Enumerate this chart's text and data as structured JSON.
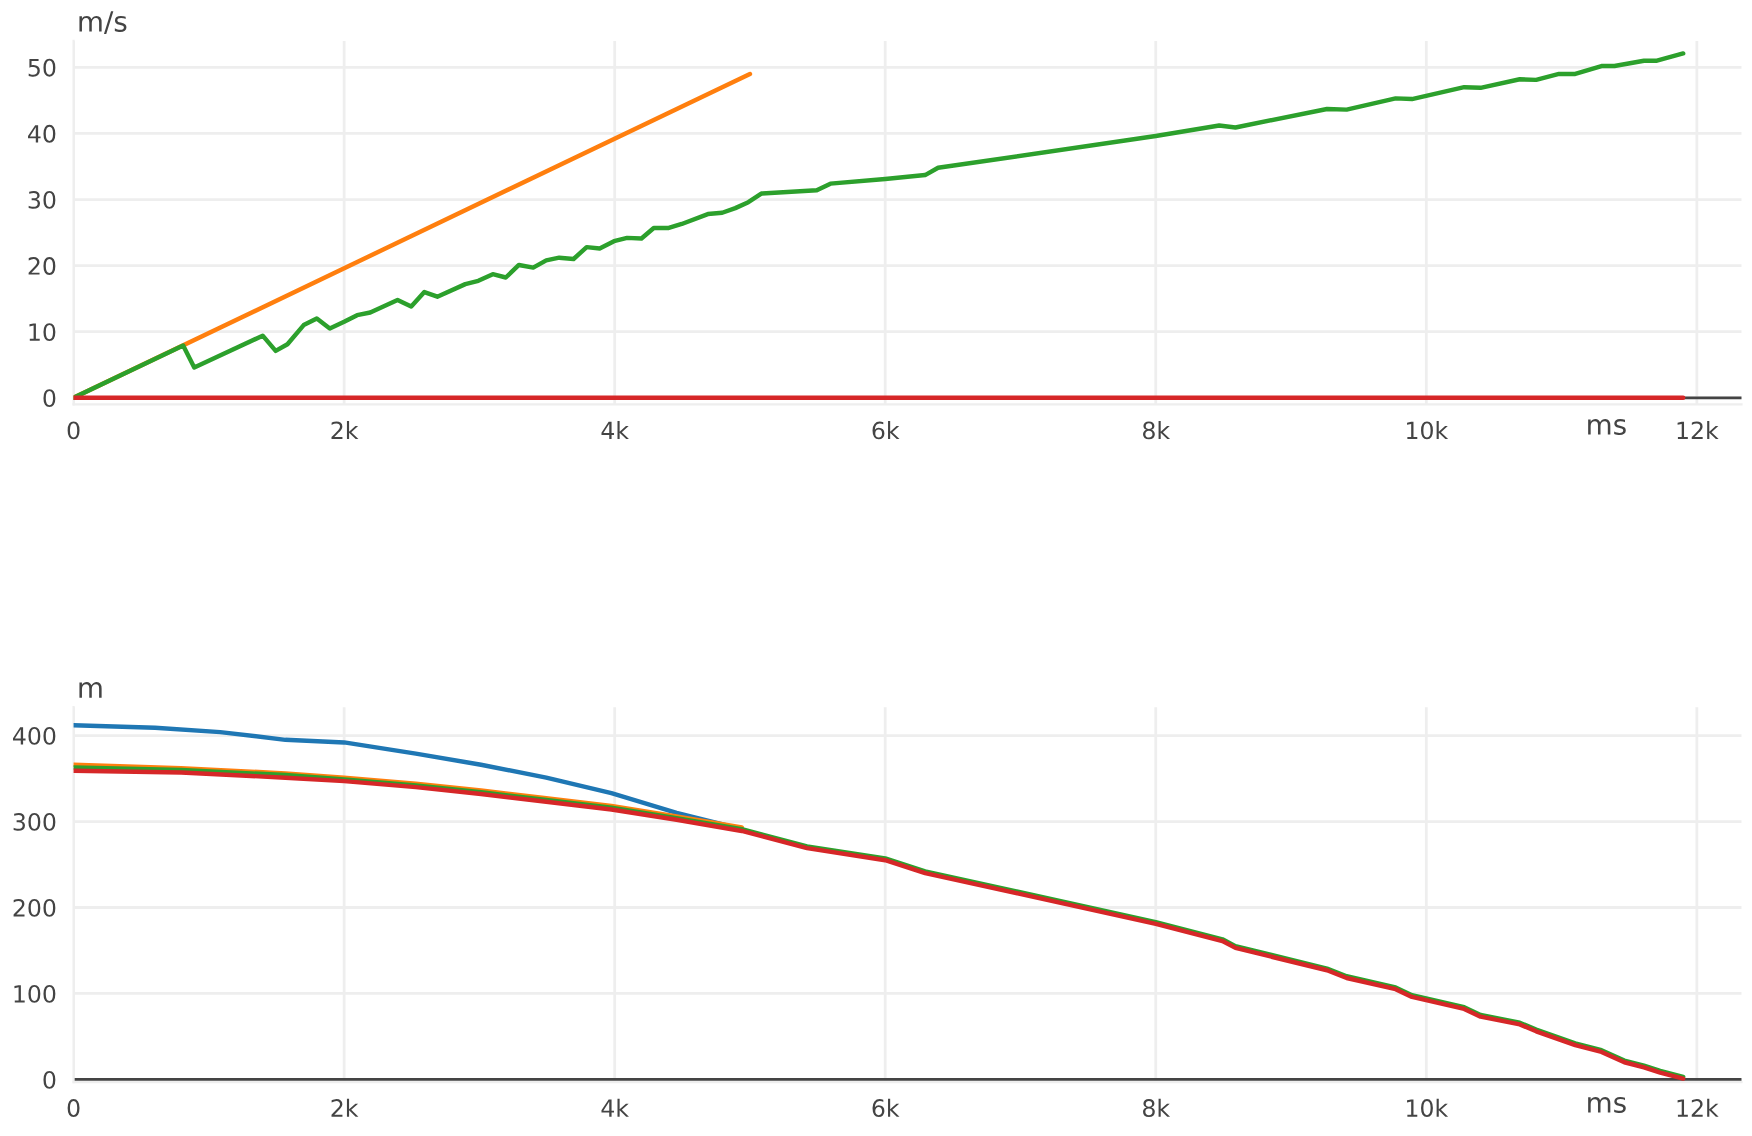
{
  "chart_data": [
    {
      "type": "line",
      "xlabel": "ms",
      "ylabel": "m/s",
      "xlim": [
        0,
        12330
      ],
      "ylim": [
        -1,
        54
      ],
      "grid": true,
      "marker": "none",
      "line_style": "solid",
      "xticks": [
        0,
        {
          "value": 2000,
          "label": "2k"
        },
        {
          "value": 4000,
          "label": "4k"
        },
        {
          "value": 6000,
          "label": "6k"
        },
        {
          "value": 8000,
          "label": "8k"
        },
        {
          "value": 10000,
          "label": "10k"
        },
        {
          "value": 12000,
          "label": "12k"
        }
      ],
      "yticks": [
        0,
        10,
        20,
        30,
        40,
        50
      ],
      "series": [
        {
          "color": "#ff7f0e",
          "x": [
            0,
            5000
          ],
          "values": [
            0,
            49
          ]
        },
        {
          "color": "#2ca02c",
          "x": [
            0,
            810,
            892,
            1398,
            1494,
            1581,
            1701,
            1798,
            1894,
            2000,
            2096,
            2193,
            2395,
            2496,
            2593,
            2689,
            2896,
            2992,
            3099,
            3195,
            3292,
            3398,
            3494,
            3590,
            3696,
            3793,
            3889,
            3995,
            4092,
            4198,
            4289,
            4400,
            4496,
            4689,
            4795,
            4892,
            4988,
            5084,
            5494,
            5595,
            6000,
            6295,
            6391,
            8000,
            8469,
            8589,
            9266,
            9411,
            9773,
            9894,
            10280,
            10401,
            10691,
            10812,
            10981,
            11101,
            11295,
            11391,
            11609,
            11705,
            11899
          ],
          "values": [
            0,
            7.9,
            4.6,
            9.4,
            7.1,
            8.1,
            11.0,
            12.0,
            10.5,
            11.5,
            12.5,
            12.9,
            14.8,
            13.8,
            16.0,
            15.3,
            17.2,
            17.7,
            18.7,
            18.2,
            20.1,
            19.7,
            20.8,
            21.2,
            21.0,
            22.8,
            22.6,
            23.7,
            24.2,
            24.1,
            25.7,
            25.7,
            26.3,
            27.8,
            28.0,
            28.7,
            29.6,
            30.9,
            31.4,
            32.4,
            33.1,
            33.7,
            34.8,
            39.6,
            41.2,
            40.9,
            43.7,
            43.6,
            45.3,
            45.2,
            47.0,
            46.9,
            48.2,
            48.1,
            49.0,
            49.0,
            50.2,
            50.2,
            51.0,
            51.0,
            52.1
          ]
        },
        {
          "color": "#d62728",
          "x": [
            0,
            11899
          ],
          "values": [
            0,
            0
          ]
        }
      ]
    },
    {
      "type": "line",
      "xlabel": "ms",
      "ylabel": "m",
      "xlim": [
        0,
        12330
      ],
      "ylim": [
        -3,
        433
      ],
      "grid": true,
      "marker": "none",
      "line_style": "solid",
      "xticks": [
        0,
        {
          "value": 2000,
          "label": "2k"
        },
        {
          "value": 4000,
          "label": "4k"
        },
        {
          "value": 6000,
          "label": "6k"
        },
        {
          "value": 8000,
          "label": "8k"
        },
        {
          "value": 10000,
          "label": "10k"
        },
        {
          "value": 12000,
          "label": "12k"
        }
      ],
      "yticks": [
        0,
        100,
        200,
        300,
        400
      ],
      "series": [
        {
          "color": "#1f77b4",
          "x": [
            0,
            602,
            1084,
            1566,
            2000,
            2530,
            3012,
            3494,
            3976,
            4458,
            4940
          ],
          "values": [
            412,
            409,
            404,
            395,
            392,
            379,
            366,
            351,
            333,
            310,
            291
          ]
        },
        {
          "color": "#ff7f0e",
          "x": [
            0,
            795,
            1566,
            2000,
            2530,
            3012,
            3494,
            3976,
            4458,
            4940
          ],
          "values": [
            366,
            362,
            356,
            351,
            344,
            336,
            327,
            318,
            306,
            293
          ]
        },
        {
          "color": "#2ca02c",
          "x": [
            0,
            795,
            1566,
            2000,
            2530,
            3012,
            3494,
            3976,
            4458,
            4940,
            5422,
            6000,
            6295,
            8000,
            8493,
            8589,
            9266,
            9411,
            9773,
            9894,
            10280,
            10401,
            10691,
            10812,
            11101,
            11295,
            11464,
            11609,
            11729,
            11899
          ],
          "values": [
            363,
            360,
            354,
            349,
            342,
            334,
            325,
            316,
            304,
            291,
            271,
            257,
            242,
            183,
            163,
            155,
            129,
            120,
            107,
            98,
            84,
            75,
            66,
            58,
            42,
            34,
            22,
            16,
            10,
            3
          ]
        },
        {
          "color": "#d62728",
          "x": [
            0,
            795,
            1566,
            2000,
            2530,
            3012,
            3494,
            3976,
            4458,
            4940,
            5422,
            6000,
            6295,
            8000,
            8493,
            8589,
            9266,
            9411,
            9773,
            9894,
            10280,
            10401,
            10691,
            10812,
            11101,
            11295,
            11464,
            11609,
            11729,
            11899
          ],
          "values": [
            359,
            357,
            351,
            347,
            340,
            332,
            323,
            314,
            302,
            289,
            269,
            255,
            240,
            181,
            161,
            153,
            127,
            118,
            105,
            96,
            82,
            73,
            64,
            56,
            40,
            32,
            20,
            14,
            8,
            1
          ]
        }
      ]
    }
  ]
}
